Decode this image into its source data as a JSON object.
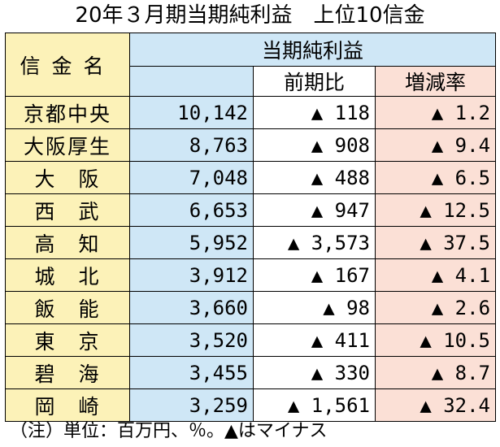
{
  "title": "20年３月期当期純利益　上位10信金",
  "headers": {
    "bank": "信金名",
    "net_profit": "当期純利益",
    "prev_ratio": "前期比",
    "growth_rate": "増減率"
  },
  "rows": [
    {
      "bank": "京都中央",
      "profit": "10,142",
      "prev": "▲ 118",
      "rate": "▲ 1.2"
    },
    {
      "bank": "大阪厚生",
      "profit": "8,763",
      "prev": "▲ 908",
      "rate": "▲ 9.4"
    },
    {
      "bank": "大　阪",
      "profit": "7,048",
      "prev": "▲ 488",
      "rate": "▲ 6.5"
    },
    {
      "bank": "西　武",
      "profit": "6,653",
      "prev": "▲ 947",
      "rate": "▲ 12.5"
    },
    {
      "bank": "高　知",
      "profit": "5,952",
      "prev": "▲ 3,573",
      "rate": "▲ 37.5"
    },
    {
      "bank": "城　北",
      "profit": "3,912",
      "prev": "▲ 167",
      "rate": "▲ 4.1"
    },
    {
      "bank": "飯　能",
      "profit": "3,660",
      "prev": "▲ 98",
      "rate": "▲ 2.6"
    },
    {
      "bank": "東　京",
      "profit": "3,520",
      "prev": "▲ 411",
      "rate": "▲ 10.5"
    },
    {
      "bank": "碧　海",
      "profit": "3,455",
      "prev": "▲ 330",
      "rate": "▲ 8.7"
    },
    {
      "bank": "岡　崎",
      "profit": "3,259",
      "prev": "▲ 1,561",
      "rate": "▲ 32.4"
    }
  ],
  "note": "（注）単位：百万円、％。▲はマイナス",
  "colors": {
    "bank_column": "#fcf2b8",
    "profit_column": "#cfe7f6",
    "rate_column": "#fbe0d6"
  }
}
